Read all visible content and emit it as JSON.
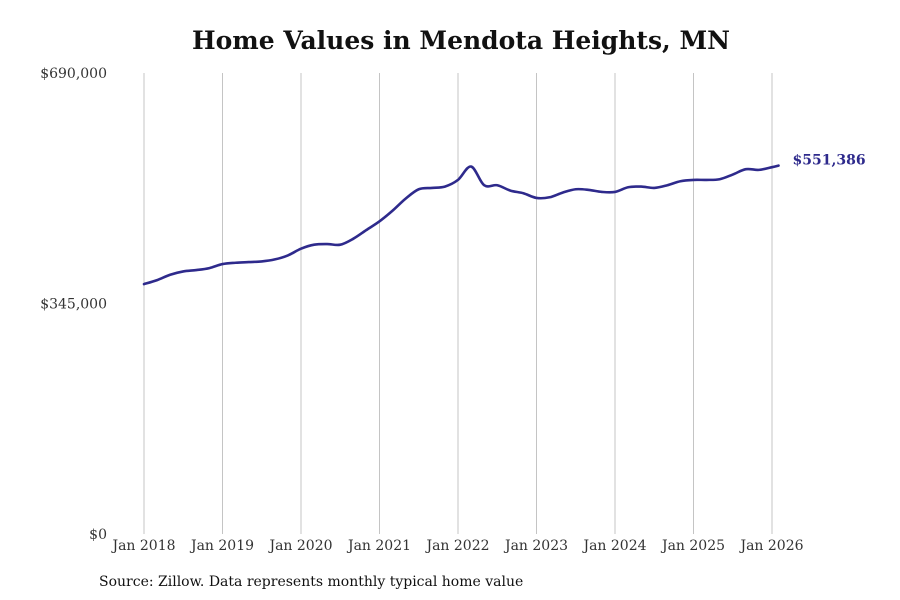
{
  "chart_data": {
    "type": "line",
    "title": "Home Values in Mendota Heights, MN",
    "source_note": "Source: Zillow. Data represents monthly typical home value",
    "xlabel": "",
    "ylabel": "",
    "ylim": [
      0,
      690000
    ],
    "y_ticks": [
      0,
      345000,
      690000
    ],
    "y_tick_labels": [
      "$0",
      "$345,000",
      "$690,000"
    ],
    "x_ticks": [
      2018,
      2019,
      2020,
      2021,
      2022,
      2023,
      2024,
      2025,
      2026
    ],
    "x_tick_labels": [
      "Jan 2018",
      "Jan 2019",
      "Jan 2020",
      "Jan 2021",
      "Jan 2022",
      "Jan 2023",
      "Jan 2024",
      "Jan 2025",
      "Jan 2026"
    ],
    "grid": "vertical",
    "end_label": "$551,386",
    "line_color": "#2e2a8c",
    "series": [
      {
        "name": "Typical home value",
        "x": [
          2018.0,
          2018.167,
          2018.333,
          2018.5,
          2018.667,
          2018.833,
          2019.0,
          2019.167,
          2019.333,
          2019.5,
          2019.667,
          2019.833,
          2020.0,
          2020.167,
          2020.333,
          2020.5,
          2020.667,
          2020.833,
          2021.0,
          2021.167,
          2021.333,
          2021.5,
          2021.667,
          2021.833,
          2022.0,
          2022.167,
          2022.333,
          2022.5,
          2022.667,
          2022.833,
          2023.0,
          2023.167,
          2023.333,
          2023.5,
          2023.667,
          2023.833,
          2024.0,
          2024.167,
          2024.333,
          2024.5,
          2024.667,
          2024.833,
          2025.0,
          2025.167,
          2025.333,
          2025.5,
          2025.667,
          2025.833,
          2026.0,
          2026.083
        ],
        "values": [
          374000,
          380000,
          388000,
          393000,
          395000,
          398000,
          404000,
          406000,
          407000,
          408000,
          411000,
          417000,
          427000,
          433000,
          434000,
          433000,
          442000,
          455000,
          468000,
          484000,
          502000,
          516000,
          518000,
          520000,
          530000,
          550000,
          522000,
          522000,
          514000,
          510000,
          503000,
          504000,
          511000,
          516000,
          515000,
          512000,
          512000,
          519000,
          520000,
          518000,
          522000,
          528000,
          530000,
          530000,
          531000,
          538000,
          546000,
          545000,
          549000,
          551386
        ]
      }
    ]
  }
}
